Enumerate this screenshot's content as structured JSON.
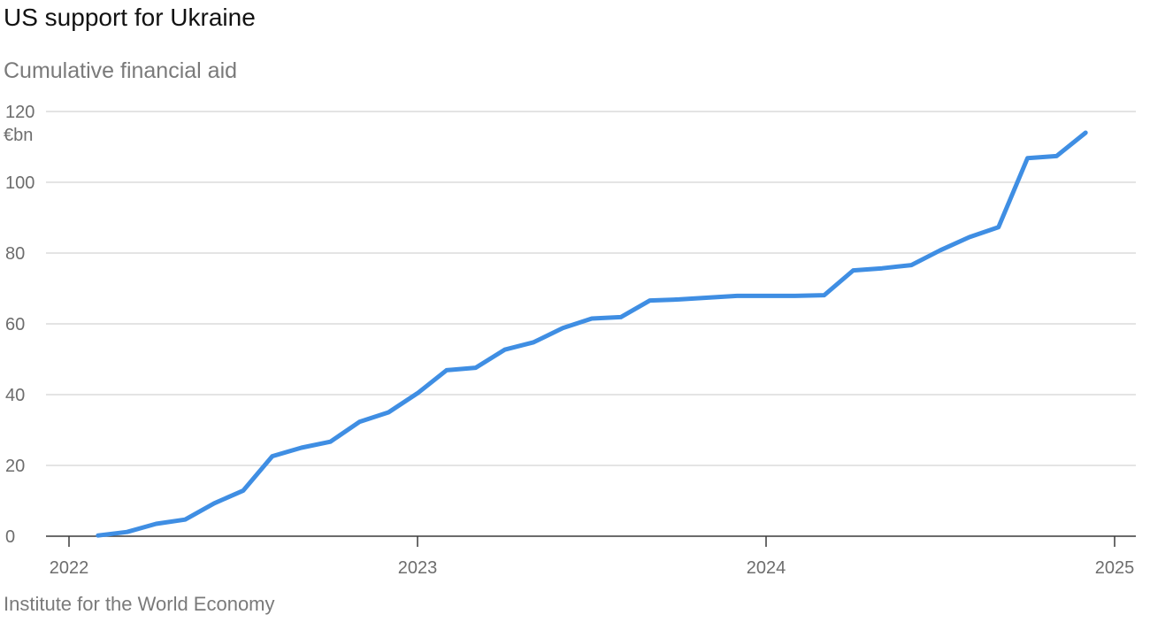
{
  "chart_data": {
    "type": "line",
    "title": "US support for Ukraine",
    "subtitle": "Cumulative financial aid",
    "unit": "€bn",
    "source": "Institute for the World Economy",
    "ylim": [
      0,
      120
    ],
    "y_ticks": [
      "0",
      "20",
      "40",
      "60",
      "80",
      "100",
      "120"
    ],
    "x_ticks": [
      "2022",
      "2023",
      "2024",
      "2025"
    ],
    "xlim": [
      "2022-01",
      "2025-01"
    ],
    "grid": true,
    "line_color": "#3f8ee3",
    "series": [
      {
        "x": [
          "2022-02",
          "2022-03",
          "2022-04",
          "2022-05",
          "2022-06",
          "2022-07",
          "2022-08",
          "2022-09",
          "2022-10",
          "2022-11",
          "2022-12",
          "2023-01",
          "2023-02",
          "2023-03",
          "2023-04",
          "2023-05",
          "2023-06",
          "2023-07",
          "2023-08",
          "2023-09",
          "2023-10",
          "2023-11",
          "2023-12",
          "2024-01",
          "2024-02",
          "2024-03",
          "2024-04",
          "2024-05",
          "2024-06",
          "2024-07",
          "2024-08",
          "2024-09",
          "2024-10",
          "2024-11",
          "2024-12"
        ],
        "values": [
          0.2,
          1.2,
          3.5,
          4.7,
          9.3,
          12.9,
          22.6,
          25.0,
          26.7,
          32.3,
          35.0,
          40.4,
          46.9,
          47.6,
          52.7,
          54.8,
          58.8,
          61.5,
          61.9,
          66.6,
          66.9,
          67.4,
          67.9,
          67.9,
          67.9,
          68.1,
          75.1,
          75.7,
          76.6,
          80.8,
          84.5,
          87.3,
          106.8,
          107.4,
          114.0
        ]
      }
    ]
  }
}
